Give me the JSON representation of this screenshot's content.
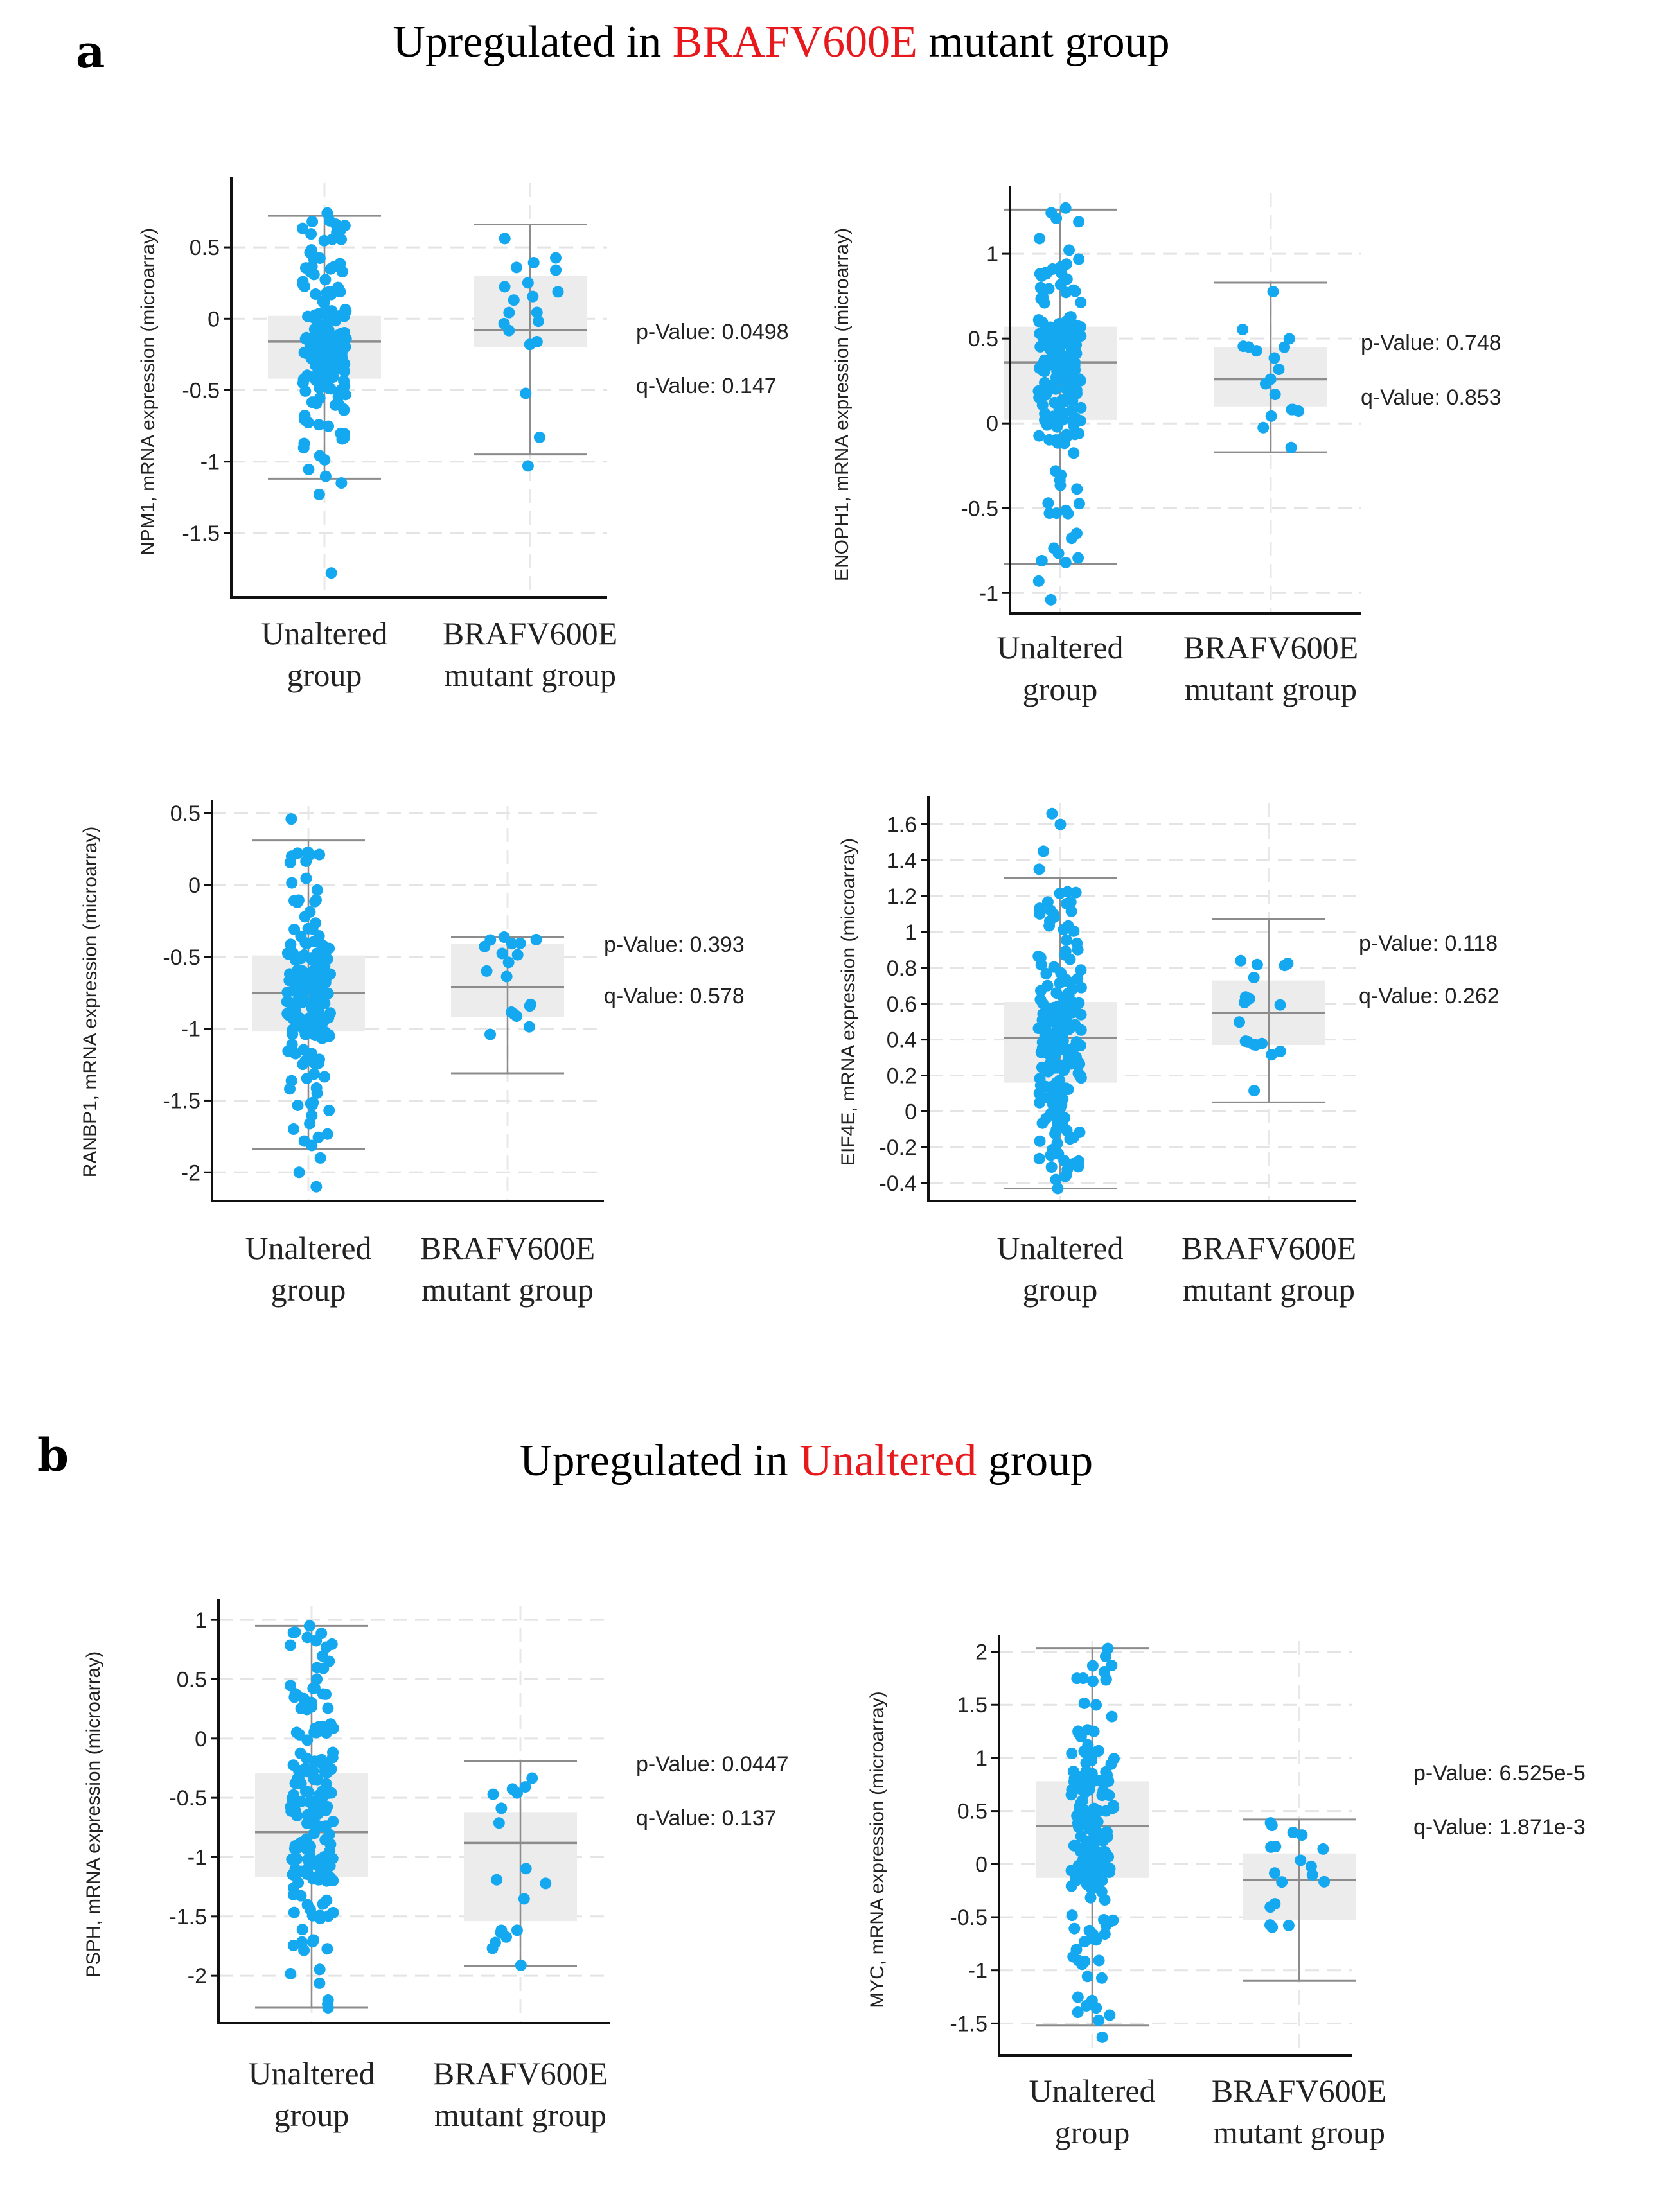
{
  "colors": {
    "accent": "#e8191c",
    "points": "#14a8f0",
    "box": "#ececec",
    "whisker": "#8c8c8c"
  },
  "sections": [
    {
      "letter": "a",
      "title": {
        "prefix": "Upregulated in ",
        "highlight": "BRAFV600E",
        "suffix": " mutant group"
      }
    },
    {
      "letter": "b",
      "title": {
        "prefix": "Upregulated in ",
        "highlight": "Unaltered",
        "suffix": " group"
      }
    }
  ],
  "chart_data": [
    {
      "type": "box",
      "ylabel": "NPM1, mRNA expression (microarray)",
      "ylim": [
        -1.95,
        0.95
      ],
      "yticks": [
        {
          "v": 0.5,
          "t": "0.5"
        },
        {
          "v": 0,
          "t": "0"
        },
        {
          "v": -0.5,
          "t": "-0.5"
        },
        {
          "v": -1,
          "t": "-1"
        },
        {
          "v": -1.5,
          "t": "-1.5"
        }
      ],
      "categories": [
        [
          "Unaltered",
          "group"
        ],
        [
          "BRAFV600E",
          "mutant group"
        ]
      ],
      "groups": [
        {
          "n": 180,
          "seed": 11,
          "median": -0.16,
          "q1": -0.42,
          "q3": 0.02,
          "wlow": -1.12,
          "whigh": 0.72,
          "outliers": [
            0.74,
            -1.78,
            -1.23,
            -1.15
          ]
        },
        {
          "n": 20,
          "seed": 23,
          "median": -0.08,
          "q1": -0.2,
          "q3": 0.3,
          "wlow": -0.95,
          "whigh": 0.66,
          "outliers": [
            -1.03
          ]
        }
      ],
      "stats": {
        "p": "p-Value: 0.0498",
        "q": "q-Value: 0.147"
      }
    },
    {
      "type": "box",
      "ylabel": "ENOPH1, mRNA expression (microarray)",
      "ylim": [
        -1.12,
        1.36
      ],
      "yticks": [
        {
          "v": 1,
          "t": "1"
        },
        {
          "v": 0.5,
          "t": "0.5"
        },
        {
          "v": 0,
          "t": "0"
        },
        {
          "v": -0.5,
          "t": "-0.5"
        },
        {
          "v": -1,
          "t": "-1"
        }
      ],
      "categories": [
        [
          "Unaltered",
          "group"
        ],
        [
          "BRAFV600E",
          "mutant group"
        ]
      ],
      "groups": [
        {
          "n": 180,
          "seed": 37,
          "median": 0.36,
          "q1": 0.02,
          "q3": 0.57,
          "wlow": -0.83,
          "whigh": 1.26,
          "outliers": [
            1.27,
            -1.04,
            -0.93
          ]
        },
        {
          "n": 18,
          "seed": 41,
          "median": 0.26,
          "q1": 0.1,
          "q3": 0.45,
          "wlow": -0.17,
          "whigh": 0.83,
          "outliers": []
        }
      ],
      "stats": {
        "p": "p-Value: 0.748",
        "q": "q-Value: 0.853"
      }
    },
    {
      "type": "box",
      "ylabel": "RANBP1, mRNA expression (microarray)",
      "ylim": [
        -2.2,
        0.55
      ],
      "yticks": [
        {
          "v": 0.5,
          "t": "0.5"
        },
        {
          "v": 0,
          "t": "0"
        },
        {
          "v": -0.5,
          "t": "-0.5"
        },
        {
          "v": -1,
          "t": "-1"
        },
        {
          "v": -1.5,
          "t": "-1.5"
        },
        {
          "v": -2,
          "t": "-2"
        }
      ],
      "categories": [
        [
          "Unaltered",
          "group"
        ],
        [
          "BRAFV600E",
          "mutant group"
        ]
      ],
      "groups": [
        {
          "n": 180,
          "seed": 53,
          "median": -0.75,
          "q1": -1.02,
          "q3": -0.49,
          "wlow": -1.84,
          "whigh": 0.31,
          "outliers": [
            0.46,
            -2.1,
            -2.0,
            -1.9
          ]
        },
        {
          "n": 18,
          "seed": 59,
          "median": -0.71,
          "q1": -0.92,
          "q3": -0.41,
          "wlow": -1.31,
          "whigh": -0.36,
          "outliers": []
        }
      ],
      "stats": {
        "p": "p-Value: 0.393",
        "q": "q-Value: 0.578"
      }
    },
    {
      "type": "box",
      "ylabel": "EIF4E, mRNA expression (microarray)",
      "ylim": [
        -0.5,
        1.72
      ],
      "yticks": [
        {
          "v": 1.6,
          "t": "1.6"
        },
        {
          "v": 1.4,
          "t": "1.4"
        },
        {
          "v": 1.2,
          "t": "1.2"
        },
        {
          "v": 1,
          "t": "1"
        },
        {
          "v": 0.8,
          "t": "0.8"
        },
        {
          "v": 0.6,
          "t": "0.6"
        },
        {
          "v": 0.4,
          "t": "0.4"
        },
        {
          "v": 0.2,
          "t": "0.2"
        },
        {
          "v": 0,
          "t": "0"
        },
        {
          "v": -0.2,
          "t": "-0.2"
        },
        {
          "v": -0.4,
          "t": "-0.4"
        }
      ],
      "categories": [
        [
          "Unaltered",
          "group"
        ],
        [
          "BRAFV600E",
          "mutant group"
        ]
      ],
      "groups": [
        {
          "n": 180,
          "seed": 61,
          "median": 0.41,
          "q1": 0.16,
          "q3": 0.61,
          "wlow": -0.43,
          "whigh": 1.3,
          "outliers": [
            1.66,
            1.6,
            1.45,
            1.35,
            -0.43
          ]
        },
        {
          "n": 18,
          "seed": 67,
          "median": 0.55,
          "q1": 0.37,
          "q3": 0.73,
          "wlow": 0.05,
          "whigh": 1.07,
          "outliers": []
        }
      ],
      "stats": {
        "p": "p-Value: 0.118",
        "q": "q-Value: 0.262"
      }
    },
    {
      "type": "box",
      "ylabel": "PSPH, mRNA expression (microarray)",
      "ylim": [
        -2.4,
        1.12
      ],
      "yticks": [
        {
          "v": 1,
          "t": "1"
        },
        {
          "v": 0.5,
          "t": "0.5"
        },
        {
          "v": 0,
          "t": "0"
        },
        {
          "v": -0.5,
          "t": "-0.5"
        },
        {
          "v": -1,
          "t": "-1"
        },
        {
          "v": -1.5,
          "t": "-1.5"
        },
        {
          "v": -2,
          "t": "-2"
        }
      ],
      "categories": [
        [
          "Unaltered",
          "group"
        ],
        [
          "BRAFV600E",
          "mutant group"
        ]
      ],
      "groups": [
        {
          "n": 180,
          "seed": 71,
          "median": -0.79,
          "q1": -1.17,
          "q3": -0.29,
          "wlow": -2.27,
          "whigh": 0.95,
          "outliers": [
            0.95,
            -2.27
          ]
        },
        {
          "n": 18,
          "seed": 73,
          "median": -0.88,
          "q1": -1.54,
          "q3": -0.62,
          "wlow": -1.92,
          "whigh": -0.19,
          "outliers": []
        }
      ],
      "stats": {
        "p": "p-Value: 0.0447",
        "q": "q-Value: 0.137"
      }
    },
    {
      "type": "box",
      "ylabel": "MYC, mRNA expression (microarray)",
      "ylim": [
        -1.8,
        2.1
      ],
      "yticks": [
        {
          "v": 2,
          "t": "2"
        },
        {
          "v": 1.5,
          "t": "1.5"
        },
        {
          "v": 1,
          "t": "1"
        },
        {
          "v": 0.5,
          "t": "0.5"
        },
        {
          "v": 0,
          "t": "0"
        },
        {
          "v": -0.5,
          "t": "-0.5"
        },
        {
          "v": -1,
          "t": "-1"
        },
        {
          "v": -1.5,
          "t": "-1.5"
        }
      ],
      "categories": [
        [
          "Unaltered",
          "group"
        ],
        [
          "BRAFV600E",
          "mutant group"
        ]
      ],
      "groups": [
        {
          "n": 180,
          "seed": 79,
          "median": 0.36,
          "q1": -0.13,
          "q3": 0.78,
          "wlow": -1.52,
          "whigh": 2.03,
          "outliers": [
            2.03,
            -1.63
          ]
        },
        {
          "n": 18,
          "seed": 83,
          "median": -0.15,
          "q1": -0.53,
          "q3": 0.1,
          "wlow": -1.1,
          "whigh": 0.42,
          "outliers": []
        }
      ],
      "stats": {
        "p": "p-Value: 6.525e-5",
        "q": "q-Value: 1.871e-3"
      }
    }
  ]
}
